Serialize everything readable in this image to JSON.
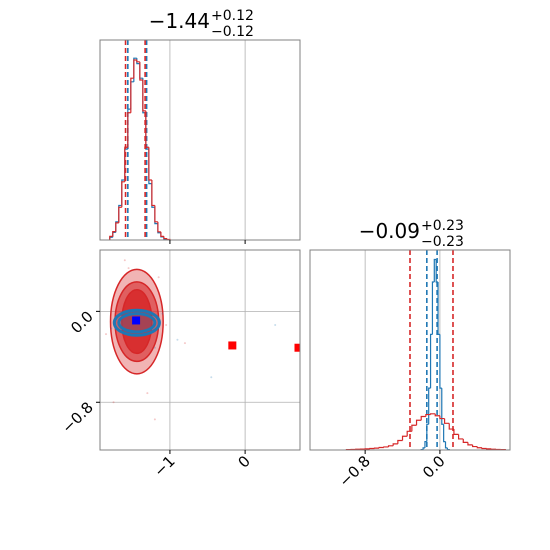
{
  "chart_data": [
    {
      "type": "histogram",
      "title": "−1.44",
      "title_upper": "+0.12",
      "title_lower": "−0.12",
      "xlim": [
        -1.93,
        0.73
      ],
      "ylim": [
        0,
        1.1
      ],
      "xticks": [
        {
          "value": -1,
          "label": "−1"
        },
        {
          "value": 0,
          "label": "0"
        }
      ],
      "grid": true,
      "series": [
        {
          "color": "#1f77b4",
          "bins": [
            -1.8,
            -1.76,
            -1.72,
            -1.68,
            -1.64,
            -1.6,
            -1.56,
            -1.52,
            -1.48,
            -1.44,
            -1.4,
            -1.36,
            -1.32,
            -1.28,
            -1.24,
            -1.2,
            -1.16,
            -1.12,
            -1.08,
            -1.04,
            -1.0
          ],
          "values": [
            0.015,
            0.042,
            0.1,
            0.19,
            0.33,
            0.5,
            0.72,
            0.87,
            1.0,
            0.97,
            0.89,
            0.7,
            0.5,
            0.31,
            0.18,
            0.09,
            0.04,
            0.017,
            0.006,
            0.002
          ],
          "quantiles": [
            -1.56,
            -1.31
          ]
        },
        {
          "color": "#d62728",
          "bins": [
            -1.8,
            -1.76,
            -1.72,
            -1.68,
            -1.64,
            -1.6,
            -1.56,
            -1.52,
            -1.48,
            -1.44,
            -1.4,
            -1.36,
            -1.32,
            -1.28,
            -1.24,
            -1.2,
            -1.16,
            -1.12,
            -1.08,
            -1.04,
            -1.0
          ],
          "values": [
            0.02,
            0.046,
            0.094,
            0.18,
            0.32,
            0.51,
            0.7,
            0.89,
            0.99,
            0.98,
            0.88,
            0.71,
            0.51,
            0.33,
            0.19,
            0.1,
            0.045,
            0.02,
            0.008,
            0.003
          ],
          "quantiles": [
            -1.59,
            -1.33
          ]
        }
      ]
    },
    {
      "type": "contour",
      "xlim": [
        -1.93,
        0.73
      ],
      "ylim": [
        -1.22,
        0.54
      ],
      "xticks": [
        {
          "value": -1,
          "label": "−1"
        },
        {
          "value": 0,
          "label": "0"
        }
      ],
      "yticks": [
        {
          "value": 0,
          "label": "0.0"
        },
        {
          "value": -0.8,
          "label": "−0.8"
        }
      ],
      "grid": true,
      "series": [
        {
          "color": "#d62728",
          "center": [
            -1.44,
            -0.09
          ],
          "levels": [
            {
              "rx": 0.35,
              "ry": 0.46
            },
            {
              "rx": 0.29,
              "ry": 0.35
            },
            {
              "rx": 0.2,
              "ry": 0.28
            }
          ],
          "points": {
            "x": [
              -1.6,
              -1.75,
              -1.2,
              -1.15,
              -1.85,
              -1.3,
              -0.8,
              -1.55,
              -1.05
            ],
            "y": [
              0.45,
              -0.8,
              -0.95,
              0.3,
              -0.2,
              -0.72,
              -0.28,
              0.38,
              -0.12
            ]
          },
          "markers": {
            "x": [
              -0.17,
              0.71
            ],
            "y": [
              -0.3,
              -0.32
            ]
          }
        },
        {
          "color": "#1f77b4",
          "center": [
            -1.44,
            -0.1
          ],
          "levels": [
            {
              "rx": 0.3,
              "ry": 0.11
            },
            {
              "rx": 0.24,
              "ry": 0.08
            }
          ],
          "points": {
            "x": [
              -1.1,
              -1.78,
              -0.9,
              0.4,
              -0.45,
              -1.2
            ],
            "y": [
              -0.02,
              -0.15,
              -0.25,
              -0.12,
              -0.58,
              -0.32
            ]
          },
          "markers": {
            "x": [
              -1.45
            ],
            "y": [
              -0.08
            ]
          }
        }
      ]
    },
    {
      "type": "histogram",
      "title": "−0.09",
      "title_upper": "+0.23",
      "title_lower": "−0.23",
      "xlim": [
        -1.39,
        0.75
      ],
      "ylim": [
        0,
        1.05
      ],
      "xticks": [
        {
          "value": -0.8,
          "label": "−0.8"
        },
        {
          "value": 0,
          "label": "0.0"
        }
      ],
      "grid": true,
      "series": [
        {
          "color": "#1f77b4",
          "bins": [
            -0.2,
            -0.18,
            -0.16,
            -0.14,
            -0.12,
            -0.1,
            -0.08,
            -0.06,
            -0.04,
            -0.02,
            0.0,
            0.02,
            0.04,
            0.06,
            0.08,
            0.1
          ],
          "values": [
            0.002,
            0.011,
            0.044,
            0.135,
            0.325,
            0.607,
            0.882,
            1.0,
            0.882,
            0.607,
            0.325,
            0.135,
            0.044,
            0.011,
            0.002
          ],
          "quantiles": [
            -0.14,
            -0.03
          ]
        },
        {
          "color": "#d62728",
          "bins": [
            -1.0,
            -0.95,
            -0.9,
            -0.85,
            -0.8,
            -0.75,
            -0.7,
            -0.65,
            -0.6,
            -0.55,
            -0.5,
            -0.45,
            -0.4,
            -0.35,
            -0.3,
            -0.25,
            -0.2,
            -0.15,
            -0.1,
            -0.05,
            0.0,
            0.05,
            0.1,
            0.15,
            0.2,
            0.25,
            0.3,
            0.35,
            0.4,
            0.45,
            0.5,
            0.55,
            0.6,
            0.65,
            0.7
          ],
          "values": [
            0.002,
            0.003,
            0.004,
            0.005,
            0.006,
            0.008,
            0.01,
            0.013,
            0.016,
            0.022,
            0.032,
            0.05,
            0.072,
            0.098,
            0.13,
            0.156,
            0.176,
            0.186,
            0.19,
            0.18,
            0.165,
            0.14,
            0.11,
            0.082,
            0.058,
            0.04,
            0.027,
            0.018,
            0.012,
            0.008,
            0.006,
            0.004,
            0.003,
            0.002
          ],
          "quantiles": [
            -0.32,
            0.14
          ]
        }
      ]
    }
  ]
}
